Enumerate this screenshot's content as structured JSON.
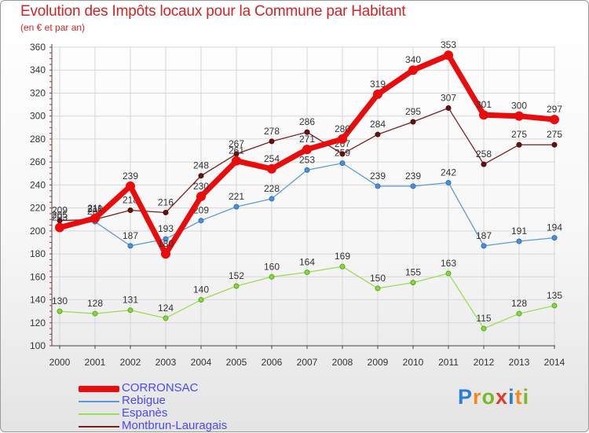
{
  "chart_data": {
    "type": "line",
    "title": "Evolution des Impôts locaux pour la Commune par Habitant",
    "subtitle": "(en € et par an)",
    "x": [
      "2000",
      "2001",
      "2002",
      "2003",
      "2004",
      "2005",
      "2006",
      "2007",
      "2008",
      "2009",
      "2010",
      "2011",
      "2012",
      "2013",
      "2014"
    ],
    "ylim": [
      100,
      360
    ],
    "yticks": [
      100,
      120,
      140,
      160,
      180,
      200,
      220,
      240,
      260,
      280,
      300,
      320,
      340,
      360
    ],
    "grid": true,
    "series": [
      {
        "name": "CORRONSAC",
        "color": "#e80c0c",
        "values": [
          203,
          211,
          239,
          180,
          230,
          261,
          254,
          271,
          280,
          319,
          340,
          353,
          301,
          300,
          297
        ]
      },
      {
        "name": "Rebigue",
        "color": "#5b9bd5",
        "values": [
          205,
          208,
          187,
          193,
          209,
          221,
          228,
          253,
          259,
          239,
          239,
          242,
          187,
          191,
          194
        ]
      },
      {
        "name": "Espanès",
        "color": "#99dd55",
        "values": [
          130,
          128,
          131,
          124,
          140,
          152,
          160,
          164,
          169,
          150,
          155,
          163,
          115,
          128,
          135
        ]
      },
      {
        "name": "Montbrun-Lauragais",
        "color": "#7a1e1e",
        "values": [
          209,
          210,
          218,
          216,
          248,
          267,
          278,
          286,
          267,
          284,
          295,
          307,
          258,
          275,
          275
        ]
      }
    ],
    "legend_position": "bottom-left"
  },
  "logo": {
    "text": "Proxiti"
  }
}
